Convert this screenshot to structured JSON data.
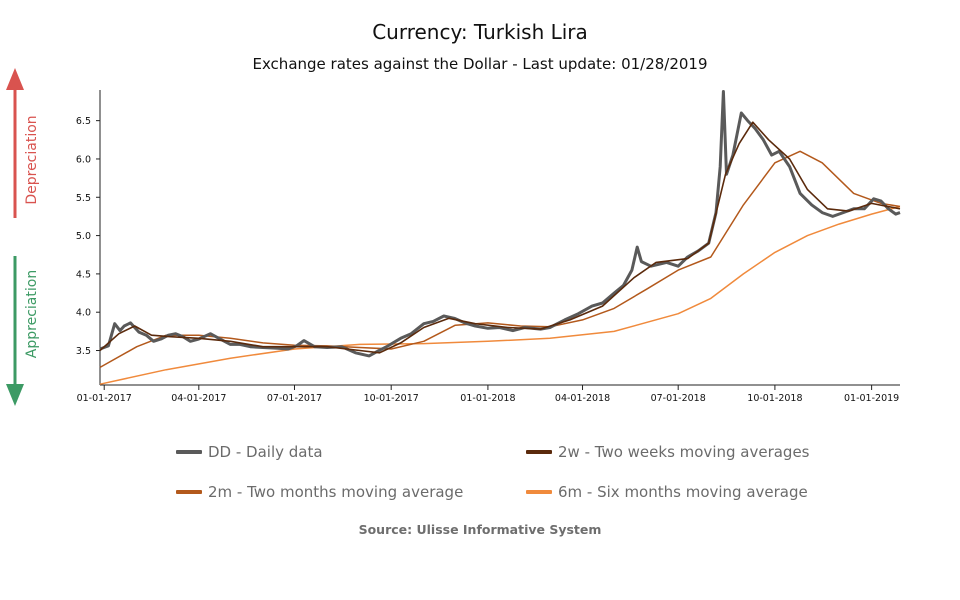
{
  "title": "Currency: Turkish Lira",
  "subtitle": "Exchange rates against the Dollar - Last update: 01/28/2019",
  "side_labels": {
    "up": "Depreciation",
    "down": "Appreciation",
    "up_color": "#d9534f",
    "down_color": "#3c9a64"
  },
  "source": "Source: Ulisse Informative System",
  "legend": [
    {
      "label": "DD - Daily data",
      "color": "#5a5a5a"
    },
    {
      "label": "2w - Two weeks moving averages",
      "color": "#5b2a0c"
    },
    {
      "label": "2m - Two months moving average",
      "color": "#b3591c"
    },
    {
      "label": "6m - Six months moving average",
      "color": "#f08a3c"
    }
  ],
  "chart_data": {
    "type": "line",
    "title": "Currency: Turkish Lira",
    "subtitle": "Exchange rates against the Dollar - Last update: 01/28/2019",
    "xlabel": "",
    "ylabel": "",
    "x_ticks": [
      "01-01-2017",
      "04-01-2017",
      "07-01-2017",
      "10-01-2017",
      "01-01-2018",
      "04-01-2018",
      "07-01-2018",
      "10-01-2018",
      "01-01-2019"
    ],
    "y_ticks": [
      "3.5",
      "4.0",
      "4.5",
      "5.0",
      "5.5",
      "6.0",
      "6.5"
    ],
    "ylim": [
      3.05,
      6.9
    ],
    "xlim": [
      "2016-12-28",
      "2019-01-28"
    ],
    "grid": false,
    "legend_position": "bottom",
    "series": [
      {
        "name": "DD - Daily data",
        "color": "#5a5a5a",
        "points": [
          [
            "2016-12-28",
            3.52
          ],
          [
            "2017-01-05",
            3.56
          ],
          [
            "2017-01-11",
            3.85
          ],
          [
            "2017-01-16",
            3.76
          ],
          [
            "2017-01-20",
            3.82
          ],
          [
            "2017-01-26",
            3.86
          ],
          [
            "2017-02-03",
            3.74
          ],
          [
            "2017-02-10",
            3.7
          ],
          [
            "2017-02-17",
            3.62
          ],
          [
            "2017-02-24",
            3.65
          ],
          [
            "2017-03-03",
            3.7
          ],
          [
            "2017-03-10",
            3.72
          ],
          [
            "2017-03-17",
            3.68
          ],
          [
            "2017-03-24",
            3.62
          ],
          [
            "2017-04-01",
            3.65
          ],
          [
            "2017-04-12",
            3.72
          ],
          [
            "2017-04-20",
            3.66
          ],
          [
            "2017-05-01",
            3.58
          ],
          [
            "2017-05-10",
            3.58
          ],
          [
            "2017-05-20",
            3.55
          ],
          [
            "2017-06-01",
            3.54
          ],
          [
            "2017-06-15",
            3.53
          ],
          [
            "2017-06-25",
            3.52
          ],
          [
            "2017-07-03",
            3.56
          ],
          [
            "2017-07-10",
            3.63
          ],
          [
            "2017-07-20",
            3.55
          ],
          [
            "2017-08-01",
            3.54
          ],
          [
            "2017-08-15",
            3.55
          ],
          [
            "2017-08-28",
            3.47
          ],
          [
            "2017-09-10",
            3.43
          ],
          [
            "2017-09-18",
            3.49
          ],
          [
            "2017-09-28",
            3.56
          ],
          [
            "2017-10-10",
            3.66
          ],
          [
            "2017-10-20",
            3.72
          ],
          [
            "2017-11-01",
            3.85
          ],
          [
            "2017-11-10",
            3.88
          ],
          [
            "2017-11-20",
            3.95
          ],
          [
            "2017-11-30",
            3.92
          ],
          [
            "2017-12-10",
            3.86
          ],
          [
            "2017-12-20",
            3.82
          ],
          [
            "2018-01-01",
            3.79
          ],
          [
            "2018-01-12",
            3.8
          ],
          [
            "2018-01-25",
            3.76
          ],
          [
            "2018-02-05",
            3.8
          ],
          [
            "2018-02-20",
            3.78
          ],
          [
            "2018-03-01",
            3.8
          ],
          [
            "2018-03-15",
            3.9
          ],
          [
            "2018-03-28",
            3.98
          ],
          [
            "2018-04-10",
            4.08
          ],
          [
            "2018-04-20",
            4.12
          ],
          [
            "2018-05-01",
            4.25
          ],
          [
            "2018-05-10",
            4.35
          ],
          [
            "2018-05-18",
            4.55
          ],
          [
            "2018-05-23",
            4.85
          ],
          [
            "2018-05-27",
            4.66
          ],
          [
            "2018-06-05",
            4.6
          ],
          [
            "2018-06-20",
            4.65
          ],
          [
            "2018-07-01",
            4.6
          ],
          [
            "2018-07-10",
            4.72
          ],
          [
            "2018-07-20",
            4.8
          ],
          [
            "2018-07-30",
            4.9
          ],
          [
            "2018-08-06",
            5.3
          ],
          [
            "2018-08-10",
            5.9
          ],
          [
            "2018-08-13",
            6.88
          ],
          [
            "2018-08-16",
            5.8
          ],
          [
            "2018-08-22",
            6.05
          ],
          [
            "2018-08-30",
            6.6
          ],
          [
            "2018-09-05",
            6.5
          ],
          [
            "2018-09-12",
            6.4
          ],
          [
            "2018-09-20",
            6.25
          ],
          [
            "2018-09-28",
            6.05
          ],
          [
            "2018-10-05",
            6.1
          ],
          [
            "2018-10-15",
            5.9
          ],
          [
            "2018-10-25",
            5.55
          ],
          [
            "2018-11-05",
            5.4
          ],
          [
            "2018-11-15",
            5.3
          ],
          [
            "2018-11-25",
            5.25
          ],
          [
            "2018-12-05",
            5.3
          ],
          [
            "2018-12-15",
            5.35
          ],
          [
            "2018-12-25",
            5.35
          ],
          [
            "2019-01-03",
            5.48
          ],
          [
            "2019-01-10",
            5.45
          ],
          [
            "2019-01-17",
            5.35
          ],
          [
            "2019-01-24",
            5.28
          ],
          [
            "2019-01-28",
            5.3
          ]
        ]
      },
      {
        "name": "2w - Two weeks moving averages",
        "color": "#5b2a0c",
        "points": [
          [
            "2016-12-28",
            3.5
          ],
          [
            "2017-01-15",
            3.72
          ],
          [
            "2017-01-30",
            3.82
          ],
          [
            "2017-02-15",
            3.7
          ],
          [
            "2017-03-05",
            3.68
          ],
          [
            "2017-04-01",
            3.66
          ],
          [
            "2017-05-01",
            3.62
          ],
          [
            "2017-06-01",
            3.55
          ],
          [
            "2017-07-01",
            3.55
          ],
          [
            "2017-08-01",
            3.55
          ],
          [
            "2017-09-01",
            3.5
          ],
          [
            "2017-09-20",
            3.47
          ],
          [
            "2017-10-10",
            3.6
          ],
          [
            "2017-11-01",
            3.8
          ],
          [
            "2017-11-25",
            3.92
          ],
          [
            "2017-12-20",
            3.85
          ],
          [
            "2018-01-20",
            3.8
          ],
          [
            "2018-02-20",
            3.78
          ],
          [
            "2018-03-20",
            3.9
          ],
          [
            "2018-04-20",
            4.08
          ],
          [
            "2018-05-20",
            4.45
          ],
          [
            "2018-06-10",
            4.65
          ],
          [
            "2018-07-10",
            4.7
          ],
          [
            "2018-07-30",
            4.9
          ],
          [
            "2018-08-15",
            5.8
          ],
          [
            "2018-08-28",
            6.2
          ],
          [
            "2018-09-10",
            6.48
          ],
          [
            "2018-09-25",
            6.25
          ],
          [
            "2018-10-15",
            6.0
          ],
          [
            "2018-11-01",
            5.6
          ],
          [
            "2018-11-20",
            5.35
          ],
          [
            "2018-12-10",
            5.32
          ],
          [
            "2019-01-01",
            5.42
          ],
          [
            "2019-01-28",
            5.35
          ]
        ]
      },
      {
        "name": "2m - Two months moving average",
        "color": "#b3591c",
        "points": [
          [
            "2016-12-28",
            3.28
          ],
          [
            "2017-02-01",
            3.55
          ],
          [
            "2017-03-01",
            3.7
          ],
          [
            "2017-04-01",
            3.7
          ],
          [
            "2017-05-01",
            3.66
          ],
          [
            "2017-06-01",
            3.6
          ],
          [
            "2017-07-01",
            3.57
          ],
          [
            "2017-08-01",
            3.56
          ],
          [
            "2017-09-01",
            3.54
          ],
          [
            "2017-10-01",
            3.52
          ],
          [
            "2017-11-01",
            3.62
          ],
          [
            "2017-12-01",
            3.83
          ],
          [
            "2018-01-01",
            3.86
          ],
          [
            "2018-02-01",
            3.82
          ],
          [
            "2018-03-01",
            3.81
          ],
          [
            "2018-04-01",
            3.9
          ],
          [
            "2018-05-01",
            4.05
          ],
          [
            "2018-06-01",
            4.3
          ],
          [
            "2018-07-01",
            4.55
          ],
          [
            "2018-08-01",
            4.72
          ],
          [
            "2018-09-01",
            5.4
          ],
          [
            "2018-10-01",
            5.95
          ],
          [
            "2018-10-25",
            6.1
          ],
          [
            "2018-11-15",
            5.95
          ],
          [
            "2018-12-15",
            5.55
          ],
          [
            "2019-01-10",
            5.42
          ],
          [
            "2019-01-28",
            5.38
          ]
        ]
      },
      {
        "name": "6m - Six months moving average",
        "color": "#f08a3c",
        "points": [
          [
            "2016-12-28",
            3.06
          ],
          [
            "2017-03-01",
            3.25
          ],
          [
            "2017-05-01",
            3.4
          ],
          [
            "2017-07-01",
            3.52
          ],
          [
            "2017-09-01",
            3.58
          ],
          [
            "2017-11-01",
            3.59
          ],
          [
            "2018-01-01",
            3.62
          ],
          [
            "2018-03-01",
            3.66
          ],
          [
            "2018-05-01",
            3.75
          ],
          [
            "2018-07-01",
            3.98
          ],
          [
            "2018-08-01",
            4.18
          ],
          [
            "2018-09-01",
            4.5
          ],
          [
            "2018-10-01",
            4.78
          ],
          [
            "2018-11-01",
            5.0
          ],
          [
            "2018-12-01",
            5.15
          ],
          [
            "2019-01-01",
            5.28
          ],
          [
            "2019-01-28",
            5.38
          ]
        ]
      }
    ]
  }
}
